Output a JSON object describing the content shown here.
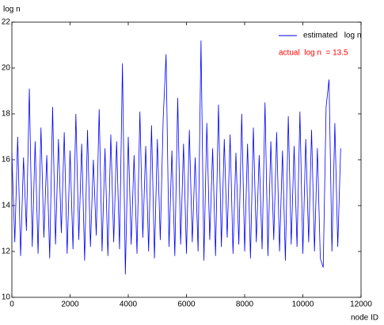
{
  "chart_data": {
    "type": "line",
    "y_label": "log n",
    "x_label": "node ID",
    "annotation": "actual  log n  = 13.5",
    "annotation_color": "#ff0000",
    "xlim": [
      0,
      12000
    ],
    "xticks": [
      0,
      2000,
      4000,
      6000,
      8000,
      10000,
      12000
    ],
    "ylim": [
      10,
      22
    ],
    "yticks": [
      10,
      12,
      14,
      16,
      18,
      20,
      22
    ],
    "grid": false,
    "legend": "upper right",
    "x": [
      0,
      100,
      200,
      300,
      400,
      500,
      600,
      700,
      800,
      900,
      1000,
      1100,
      1200,
      1300,
      1400,
      1500,
      1600,
      1700,
      1800,
      1900,
      2000,
      2100,
      2200,
      2300,
      2400,
      2500,
      2600,
      2700,
      2800,
      2900,
      3000,
      3100,
      3200,
      3300,
      3400,
      3500,
      3600,
      3700,
      3800,
      3900,
      4000,
      4100,
      4200,
      4300,
      4400,
      4500,
      4600,
      4700,
      4800,
      4900,
      5000,
      5100,
      5200,
      5300,
      5400,
      5500,
      5600,
      5700,
      5800,
      5900,
      6000,
      6100,
      6200,
      6300,
      6400,
      6500,
      6600,
      6700,
      6800,
      6900,
      7000,
      7100,
      7200,
      7300,
      7400,
      7500,
      7600,
      7700,
      7800,
      7900,
      8000,
      8100,
      8200,
      8300,
      8400,
      8500,
      8600,
      8700,
      8800,
      8900,
      9000,
      9100,
      9200,
      9300,
      9400,
      9500,
      9600,
      9700,
      9800,
      9900,
      10000,
      10100,
      10200,
      10300,
      10400,
      10500,
      10600,
      10700,
      10800,
      10900,
      11000,
      11100,
      11200,
      11300
    ],
    "series": [
      {
        "name": "estimated   log n",
        "color": "#0000ff",
        "values": [
          16.3,
          12.4,
          17.0,
          11.8,
          16.1,
          12.9,
          19.1,
          12.2,
          16.8,
          11.9,
          17.4,
          12.6,
          16.2,
          11.7,
          18.3,
          12.3,
          16.9,
          12.8,
          17.2,
          11.9,
          16.4,
          12.1,
          18.0,
          12.5,
          16.7,
          11.6,
          17.3,
          12.2,
          16.0,
          12.7,
          18.2,
          12.0,
          16.5,
          11.8,
          17.1,
          12.4,
          16.8,
          12.1,
          20.2,
          11.0,
          17.0,
          12.3,
          16.2,
          11.9,
          18.1,
          12.6,
          16.6,
          12.0,
          17.5,
          11.7,
          16.9,
          12.5,
          17.8,
          20.6,
          12.2,
          16.4,
          11.8,
          18.7,
          12.3,
          16.7,
          11.9,
          17.3,
          12.4,
          16.1,
          12.0,
          21.2,
          11.6,
          17.6,
          12.5,
          16.5,
          11.8,
          18.4,
          12.2,
          16.9,
          12.6,
          17.1,
          11.9,
          16.3,
          12.3,
          18.0,
          12.0,
          16.7,
          11.7,
          17.4,
          12.4,
          16.2,
          12.1,
          18.5,
          11.8,
          16.8,
          12.5,
          17.2,
          12.0,
          16.4,
          11.6,
          17.9,
          12.3,
          16.6,
          12.2,
          18.1,
          11.9,
          16.9,
          12.4,
          17.3,
          12.0,
          16.5,
          11.7,
          11.3,
          18.3,
          19.5,
          12.0,
          17.6,
          12.2,
          16.5
        ]
      }
    ]
  }
}
